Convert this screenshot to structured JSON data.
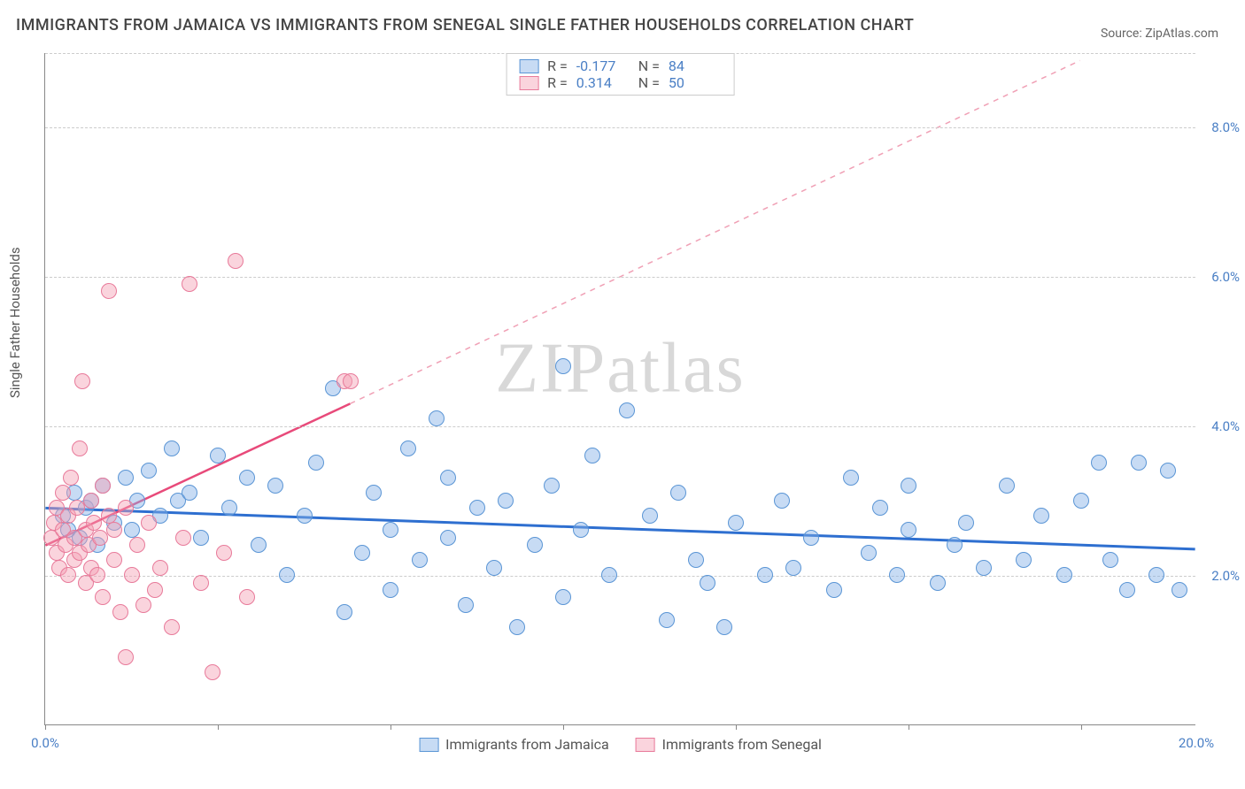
{
  "title": "IMMIGRANTS FROM JAMAICA VS IMMIGRANTS FROM SENEGAL SINGLE FATHER HOUSEHOLDS CORRELATION CHART",
  "source": "Source: ZipAtlas.com",
  "ylabel": "Single Father Households",
  "watermark": "ZIPatlas",
  "chart": {
    "type": "scatter",
    "background_color": "#ffffff",
    "grid_color": "#cccccc",
    "axis_color": "#888888",
    "tick_color": "#4a7fc5",
    "tick_fontsize": 15,
    "title_fontsize": 18,
    "xlim": [
      0,
      20
    ],
    "ylim": [
      0,
      9
    ],
    "xticks": [
      {
        "pos": 0,
        "label": "0.0%"
      },
      {
        "pos": 20,
        "label": "20.0%"
      }
    ],
    "xmarks": [
      0,
      3,
      6,
      9,
      12,
      15,
      18
    ],
    "yticks": [
      {
        "pos": 2,
        "label": "2.0%"
      },
      {
        "pos": 4,
        "label": "4.0%"
      },
      {
        "pos": 6,
        "label": "6.0%"
      },
      {
        "pos": 8,
        "label": "8.0%"
      }
    ],
    "gridlines": [
      2,
      4,
      6,
      8,
      9
    ],
    "marker_size": 18,
    "series": [
      {
        "name": "Immigrants from Jamaica",
        "key": "jamaica",
        "fill": "rgba(130,175,230,0.45)",
        "stroke": "#5a95d5",
        "R": "-0.177",
        "N": "84",
        "trend": {
          "x1": 0,
          "y1": 2.9,
          "x2": 20,
          "y2": 2.35,
          "solid_color": "#2e6fd0",
          "solid_width": 3,
          "dash": false
        },
        "points": [
          [
            0.3,
            2.8
          ],
          [
            0.4,
            2.6
          ],
          [
            0.5,
            3.1
          ],
          [
            0.6,
            2.5
          ],
          [
            0.7,
            2.9
          ],
          [
            0.8,
            3.0
          ],
          [
            0.9,
            2.4
          ],
          [
            1.0,
            3.2
          ],
          [
            1.2,
            2.7
          ],
          [
            1.4,
            3.3
          ],
          [
            1.5,
            2.6
          ],
          [
            1.6,
            3.0
          ],
          [
            1.8,
            3.4
          ],
          [
            2.0,
            2.8
          ],
          [
            2.2,
            3.7
          ],
          [
            2.3,
            3.0
          ],
          [
            2.5,
            3.1
          ],
          [
            2.7,
            2.5
          ],
          [
            3.0,
            3.6
          ],
          [
            3.2,
            2.9
          ],
          [
            3.5,
            3.3
          ],
          [
            3.7,
            2.4
          ],
          [
            4.0,
            3.2
          ],
          [
            4.2,
            2.0
          ],
          [
            4.5,
            2.8
          ],
          [
            4.7,
            3.5
          ],
          [
            5.0,
            4.5
          ],
          [
            5.2,
            1.5
          ],
          [
            5.5,
            2.3
          ],
          [
            5.7,
            3.1
          ],
          [
            6.0,
            1.8
          ],
          [
            6.0,
            2.6
          ],
          [
            6.3,
            3.7
          ],
          [
            6.5,
            2.2
          ],
          [
            6.8,
            4.1
          ],
          [
            7.0,
            2.5
          ],
          [
            7.0,
            3.3
          ],
          [
            7.3,
            1.6
          ],
          [
            7.5,
            2.9
          ],
          [
            7.8,
            2.1
          ],
          [
            8.0,
            3.0
          ],
          [
            8.2,
            1.3
          ],
          [
            8.5,
            2.4
          ],
          [
            8.8,
            3.2
          ],
          [
            9.0,
            4.8
          ],
          [
            9.0,
            1.7
          ],
          [
            9.3,
            2.6
          ],
          [
            9.5,
            3.6
          ],
          [
            9.8,
            2.0
          ],
          [
            10.1,
            4.2
          ],
          [
            10.5,
            2.8
          ],
          [
            10.8,
            1.4
          ],
          [
            11.0,
            3.1
          ],
          [
            11.3,
            2.2
          ],
          [
            11.5,
            1.9
          ],
          [
            11.8,
            1.3
          ],
          [
            12.0,
            2.7
          ],
          [
            12.5,
            2.0
          ],
          [
            12.8,
            3.0
          ],
          [
            13.0,
            2.1
          ],
          [
            13.3,
            2.5
          ],
          [
            13.7,
            1.8
          ],
          [
            14.0,
            3.3
          ],
          [
            14.3,
            2.3
          ],
          [
            14.5,
            2.9
          ],
          [
            14.8,
            2.0
          ],
          [
            15.0,
            2.6
          ],
          [
            15.0,
            3.2
          ],
          [
            15.5,
            1.9
          ],
          [
            15.8,
            2.4
          ],
          [
            16.0,
            2.7
          ],
          [
            16.3,
            2.1
          ],
          [
            16.7,
            3.2
          ],
          [
            17.0,
            2.2
          ],
          [
            17.3,
            2.8
          ],
          [
            17.7,
            2.0
          ],
          [
            18.0,
            3.0
          ],
          [
            18.3,
            3.5
          ],
          [
            18.5,
            2.2
          ],
          [
            18.8,
            1.8
          ],
          [
            19.0,
            3.5
          ],
          [
            19.3,
            2.0
          ],
          [
            19.5,
            3.4
          ],
          [
            19.7,
            1.8
          ]
        ]
      },
      {
        "name": "Immigrants from Senegal",
        "key": "senegal",
        "fill": "rgba(245,160,180,0.45)",
        "stroke": "#e87a9a",
        "R": "0.314",
        "N": "50",
        "trend": {
          "x1": 0,
          "y1": 2.4,
          "x2": 5.3,
          "y2": 4.3,
          "solid_color": "#e84a7a",
          "solid_width": 2.5,
          "dash_x2": 18,
          "dash_y2": 8.9,
          "dash_color": "#f0a0b5"
        },
        "points": [
          [
            0.1,
            2.5
          ],
          [
            0.15,
            2.7
          ],
          [
            0.2,
            2.3
          ],
          [
            0.2,
            2.9
          ],
          [
            0.25,
            2.1
          ],
          [
            0.3,
            2.6
          ],
          [
            0.3,
            3.1
          ],
          [
            0.35,
            2.4
          ],
          [
            0.4,
            2.8
          ],
          [
            0.4,
            2.0
          ],
          [
            0.45,
            3.3
          ],
          [
            0.5,
            2.5
          ],
          [
            0.5,
            2.2
          ],
          [
            0.55,
            2.9
          ],
          [
            0.6,
            3.7
          ],
          [
            0.6,
            2.3
          ],
          [
            0.65,
            4.6
          ],
          [
            0.7,
            2.6
          ],
          [
            0.7,
            1.9
          ],
          [
            0.75,
            2.4
          ],
          [
            0.8,
            3.0
          ],
          [
            0.8,
            2.1
          ],
          [
            0.85,
            2.7
          ],
          [
            0.9,
            2.0
          ],
          [
            0.95,
            2.5
          ],
          [
            1.0,
            3.2
          ],
          [
            1.0,
            1.7
          ],
          [
            1.1,
            2.8
          ],
          [
            1.1,
            5.8
          ],
          [
            1.2,
            2.2
          ],
          [
            1.2,
            2.6
          ],
          [
            1.3,
            1.5
          ],
          [
            1.4,
            2.9
          ],
          [
            1.4,
            0.9
          ],
          [
            1.5,
            2.0
          ],
          [
            1.6,
            2.4
          ],
          [
            1.7,
            1.6
          ],
          [
            1.8,
            2.7
          ],
          [
            1.9,
            1.8
          ],
          [
            2.0,
            2.1
          ],
          [
            2.2,
            1.3
          ],
          [
            2.4,
            2.5
          ],
          [
            2.5,
            5.9
          ],
          [
            2.7,
            1.9
          ],
          [
            2.9,
            0.7
          ],
          [
            3.1,
            2.3
          ],
          [
            3.3,
            6.2
          ],
          [
            3.5,
            1.7
          ],
          [
            5.2,
            4.6
          ],
          [
            5.3,
            4.6
          ]
        ]
      }
    ],
    "legend_top": {
      "border_color": "#cccccc",
      "label_color": "#555555",
      "value_color": "#4a7fc5"
    },
    "legend_bottom": {
      "items": [
        "jamaica",
        "senegal"
      ]
    }
  }
}
